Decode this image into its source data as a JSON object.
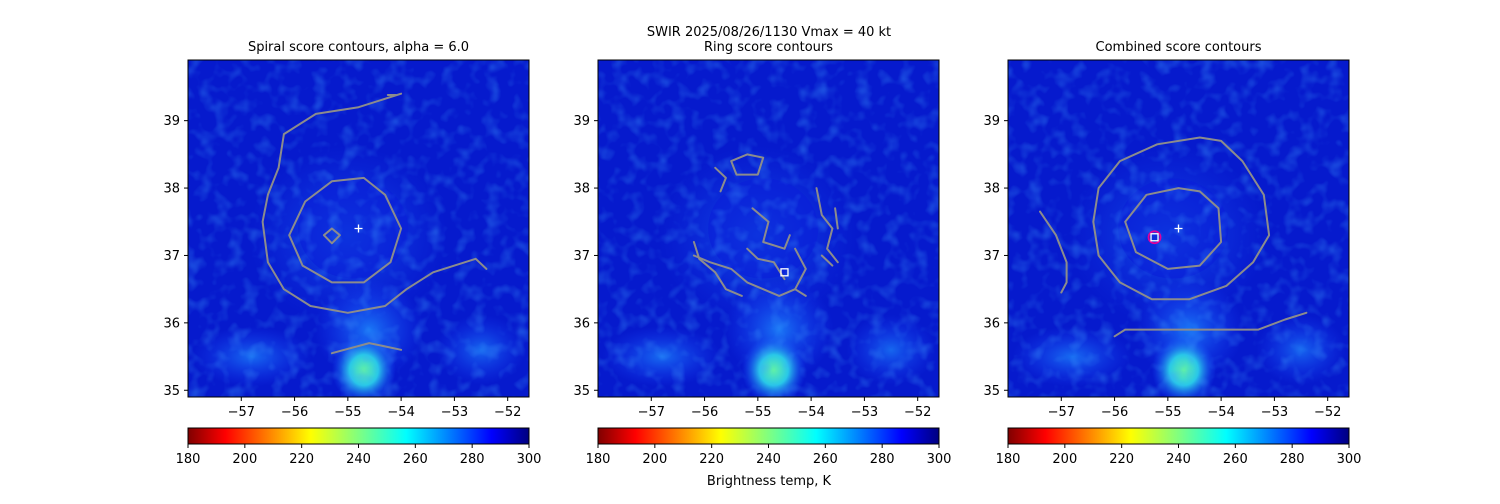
{
  "figure": {
    "suptitle_line1": "SWIR  2025/08/26/1130    Vmax = 40 kt",
    "colorbar_label": "Brightness temp, K",
    "colormap": "jet_r",
    "colorbar_range": [
      180,
      300
    ],
    "colorbar_ticks": [
      "180",
      "200",
      "220",
      "240",
      "260",
      "280",
      "300"
    ],
    "contour_color": "#8c8c8c",
    "center_marker_color": "#ffffff",
    "combined_marker_color": "#e0009a"
  },
  "chart_data": [
    {
      "type": "heatmap",
      "title": "Spiral score contours, alpha =  6.0",
      "xlim": [
        -58.0,
        -51.6
      ],
      "ylim": [
        34.9,
        39.9
      ],
      "xticks": [
        "−57",
        "−56",
        "−55",
        "−54",
        "−53",
        "−52"
      ],
      "xtick_values": [
        -57,
        -56,
        -55,
        -54,
        -53,
        -52
      ],
      "yticks": [
        "35",
        "36",
        "37",
        "38",
        "39"
      ],
      "ytick_values": [
        35,
        36,
        37,
        38,
        39
      ],
      "center_plus": [
        -54.8,
        37.4
      ],
      "contours": [
        [
          [
            -54.0,
            39.4
          ],
          [
            -54.8,
            39.2
          ],
          [
            -55.6,
            39.1
          ],
          [
            -56.2,
            38.8
          ],
          [
            -56.3,
            38.3
          ],
          [
            -56.5,
            37.9
          ],
          [
            -56.6,
            37.5
          ],
          [
            -56.5,
            36.9
          ],
          [
            -56.2,
            36.5
          ],
          [
            -55.7,
            36.25
          ],
          [
            -55.0,
            36.15
          ],
          [
            -54.3,
            36.25
          ],
          [
            -53.9,
            36.5
          ],
          [
            -53.4,
            36.75
          ],
          [
            -53.0,
            36.85
          ],
          [
            -52.6,
            36.95
          ],
          [
            -52.4,
            36.8
          ]
        ],
        [
          [
            -54.7,
            38.15
          ],
          [
            -55.3,
            38.1
          ],
          [
            -55.8,
            37.8
          ],
          [
            -56.1,
            37.3
          ],
          [
            -55.85,
            36.85
          ],
          [
            -55.3,
            36.6
          ],
          [
            -54.7,
            36.6
          ],
          [
            -54.2,
            36.9
          ],
          [
            -54.0,
            37.4
          ],
          [
            -54.3,
            37.9
          ],
          [
            -54.7,
            38.15
          ]
        ],
        [
          [
            -55.3,
            37.4
          ],
          [
            -55.45,
            37.3
          ],
          [
            -55.3,
            37.18
          ],
          [
            -55.15,
            37.3
          ],
          [
            -55.3,
            37.4
          ]
        ],
        [
          [
            -55.3,
            35.55
          ],
          [
            -54.6,
            35.7
          ],
          [
            -54.0,
            35.6
          ]
        ],
        [
          [
            -54.25,
            39.38
          ],
          [
            -54.1,
            39.38
          ]
        ]
      ]
    },
    {
      "type": "heatmap",
      "title": "Ring score contours",
      "xlim": [
        -58.0,
        -51.6
      ],
      "ylim": [
        34.9,
        39.9
      ],
      "xticks": [
        "−57",
        "−56",
        "−55",
        "−54",
        "−53",
        "−52"
      ],
      "xtick_values": [
        -57,
        -56,
        -55,
        -54,
        -53,
        -52
      ],
      "yticks": [
        "35",
        "36",
        "37",
        "38",
        "39"
      ],
      "ytick_values": [
        35,
        36,
        37,
        38,
        39
      ],
      "square_marker": [
        -54.5,
        36.75
      ],
      "contours": [
        [
          [
            -55.5,
            38.4
          ],
          [
            -55.2,
            38.5
          ],
          [
            -54.9,
            38.45
          ],
          [
            -55.0,
            38.2
          ],
          [
            -55.4,
            38.2
          ],
          [
            -55.5,
            38.4
          ]
        ],
        [
          [
            -55.8,
            38.3
          ],
          [
            -55.6,
            38.15
          ],
          [
            -55.7,
            37.95
          ]
        ],
        [
          [
            -55.1,
            37.7
          ],
          [
            -54.8,
            37.5
          ],
          [
            -54.9,
            37.2
          ],
          [
            -54.5,
            37.1
          ],
          [
            -54.4,
            37.3
          ]
        ],
        [
          [
            -53.9,
            38.0
          ],
          [
            -53.8,
            37.6
          ],
          [
            -53.6,
            37.4
          ],
          [
            -53.7,
            37.1
          ],
          [
            -53.5,
            36.9
          ]
        ],
        [
          [
            -56.2,
            37.0
          ],
          [
            -55.9,
            36.9
          ],
          [
            -55.5,
            36.8
          ],
          [
            -55.2,
            36.6
          ],
          [
            -54.9,
            36.5
          ],
          [
            -54.6,
            36.4
          ],
          [
            -54.3,
            36.5
          ]
        ],
        [
          [
            -55.2,
            37.1
          ],
          [
            -55.0,
            36.95
          ],
          [
            -54.7,
            36.9
          ],
          [
            -54.5,
            36.65
          ]
        ],
        [
          [
            -54.3,
            37.1
          ],
          [
            -54.1,
            36.8
          ],
          [
            -54.3,
            36.5
          ],
          [
            -54.1,
            36.4
          ]
        ],
        [
          [
            -56.2,
            37.2
          ],
          [
            -56.1,
            36.95
          ],
          [
            -55.8,
            36.75
          ],
          [
            -55.6,
            36.5
          ],
          [
            -55.3,
            36.4
          ]
        ],
        [
          [
            -53.55,
            37.7
          ],
          [
            -53.5,
            37.4
          ]
        ],
        [
          [
            -53.8,
            37.0
          ],
          [
            -53.6,
            36.85
          ]
        ]
      ]
    },
    {
      "type": "heatmap",
      "title": "Combined score contours",
      "xlim": [
        -58.0,
        -51.6
      ],
      "ylim": [
        34.9,
        39.9
      ],
      "xticks": [
        "−57",
        "−56",
        "−55",
        "−54",
        "−53",
        "−52"
      ],
      "xtick_values": [
        -57,
        -56,
        -55,
        -54,
        -53,
        -52
      ],
      "yticks": [
        "35",
        "36",
        "37",
        "38",
        "39"
      ],
      "ytick_values": [
        35,
        36,
        37,
        38,
        39
      ],
      "center_plus": [
        -54.8,
        37.4
      ],
      "square_marker": [
        -55.25,
        37.27
      ],
      "contours": [
        [
          [
            -54.4,
            38.75
          ],
          [
            -55.2,
            38.65
          ],
          [
            -55.9,
            38.4
          ],
          [
            -56.3,
            38.0
          ],
          [
            -56.4,
            37.5
          ],
          [
            -56.3,
            37.0
          ],
          [
            -55.9,
            36.6
          ],
          [
            -55.3,
            36.35
          ],
          [
            -54.6,
            36.35
          ],
          [
            -53.9,
            36.55
          ],
          [
            -53.4,
            36.9
          ],
          [
            -53.1,
            37.3
          ],
          [
            -53.2,
            37.9
          ],
          [
            -53.6,
            38.4
          ],
          [
            -54.0,
            38.7
          ],
          [
            -54.4,
            38.75
          ]
        ],
        [
          [
            -54.8,
            38.0
          ],
          [
            -55.4,
            37.9
          ],
          [
            -55.8,
            37.5
          ],
          [
            -55.6,
            37.05
          ],
          [
            -55.0,
            36.8
          ],
          [
            -54.4,
            36.85
          ],
          [
            -54.0,
            37.2
          ],
          [
            -54.05,
            37.7
          ],
          [
            -54.4,
            37.95
          ],
          [
            -54.8,
            38.0
          ]
        ],
        [
          [
            -57.4,
            37.65
          ],
          [
            -57.1,
            37.3
          ],
          [
            -56.9,
            36.9
          ],
          [
            -56.9,
            36.6
          ],
          [
            -57.0,
            36.45
          ]
        ],
        [
          [
            -56.0,
            35.8
          ],
          [
            -55.8,
            35.9
          ],
          [
            -55.0,
            35.9
          ],
          [
            -54.2,
            35.9
          ],
          [
            -53.3,
            35.9
          ],
          [
            -52.8,
            36.05
          ],
          [
            -52.4,
            36.15
          ]
        ]
      ]
    }
  ]
}
